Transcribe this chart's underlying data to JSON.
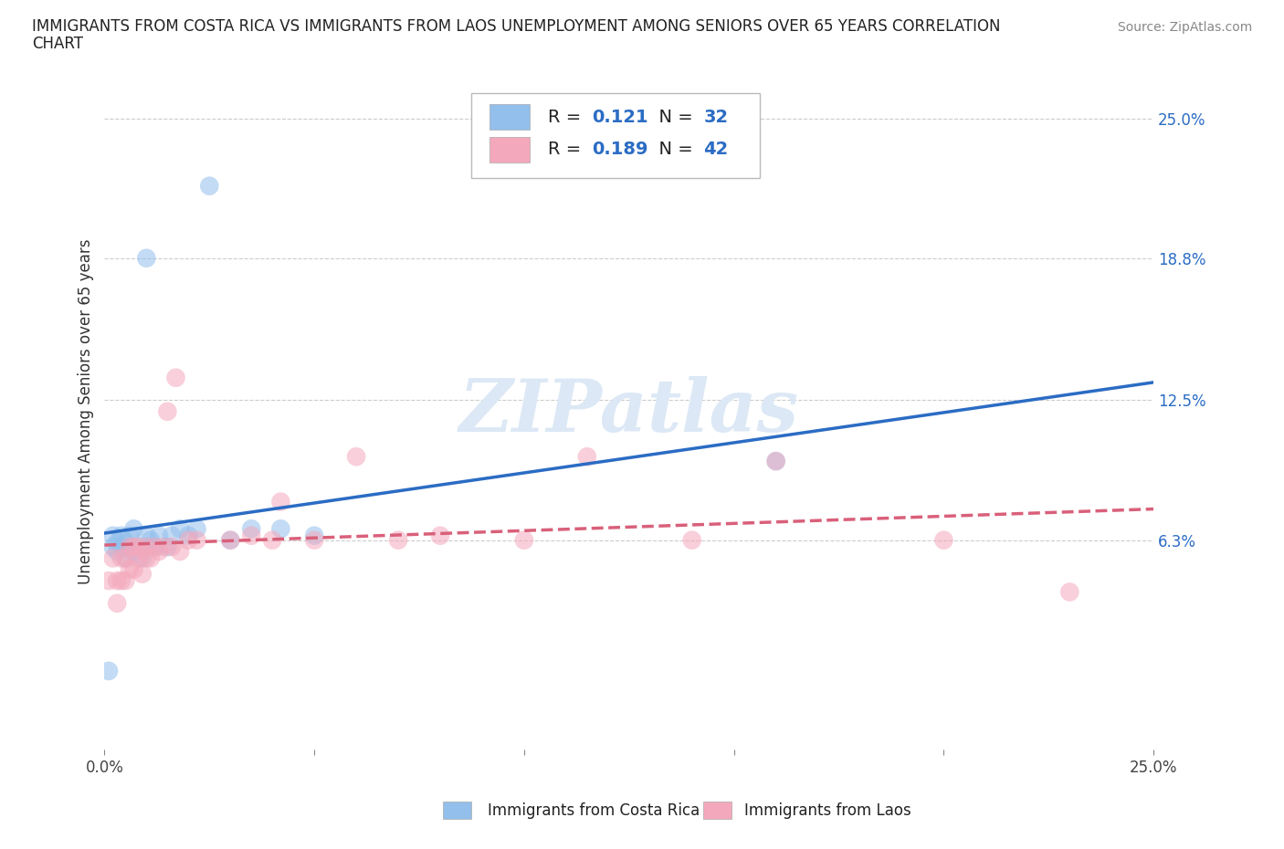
{
  "title_line1": "IMMIGRANTS FROM COSTA RICA VS IMMIGRANTS FROM LAOS UNEMPLOYMENT AMONG SENIORS OVER 65 YEARS CORRELATION",
  "title_line2": "CHART",
  "source": "Source: ZipAtlas.com",
  "ylabel": "Unemployment Among Seniors over 65 years",
  "xlim": [
    0.0,
    0.25
  ],
  "ylim": [
    -0.03,
    0.27
  ],
  "ytick_values": [
    0.063,
    0.125,
    0.188,
    0.25
  ],
  "ytick_labels": [
    "6.3%",
    "12.5%",
    "18.8%",
    "25.0%"
  ],
  "costa_rica_R": 0.121,
  "costa_rica_N": 32,
  "laos_R": 0.189,
  "laos_N": 42,
  "costa_rica_color": "#92bfec",
  "laos_color": "#f4a8bc",
  "costa_rica_line_color": "#2b6cc4",
  "laos_line_color": "#d9607a",
  "watermark_color": "#dce8f5",
  "background_color": "#ffffff",
  "grid_color": "#cccccc",
  "legend_label1": "Immigrants from Costa Rica",
  "legend_label2": "Immigrants from Laos",
  "costa_rica_x": [
    0.001,
    0.002,
    0.002,
    0.003,
    0.003,
    0.004,
    0.004,
    0.005,
    0.005,
    0.006,
    0.006,
    0.007,
    0.007,
    0.008,
    0.009,
    0.01,
    0.01,
    0.011,
    0.012,
    0.013,
    0.015,
    0.016,
    0.018,
    0.02,
    0.022,
    0.03,
    0.035,
    0.042,
    0.05,
    0.16,
    0.01,
    0.025
  ],
  "costa_rica_y": [
    0.005,
    0.06,
    0.065,
    0.058,
    0.062,
    0.06,
    0.065,
    0.055,
    0.062,
    0.06,
    0.065,
    0.058,
    0.068,
    0.06,
    0.055,
    0.06,
    0.065,
    0.063,
    0.06,
    0.065,
    0.06,
    0.065,
    0.068,
    0.065,
    0.068,
    0.063,
    0.068,
    0.068,
    0.065,
    0.098,
    0.188,
    0.22
  ],
  "laos_x": [
    0.001,
    0.002,
    0.003,
    0.003,
    0.004,
    0.004,
    0.005,
    0.005,
    0.006,
    0.006,
    0.007,
    0.007,
    0.008,
    0.008,
    0.009,
    0.009,
    0.01,
    0.01,
    0.011,
    0.012,
    0.013,
    0.014,
    0.015,
    0.016,
    0.017,
    0.018,
    0.02,
    0.022,
    0.03,
    0.035,
    0.04,
    0.042,
    0.05,
    0.06,
    0.07,
    0.08,
    0.1,
    0.115,
    0.14,
    0.16,
    0.2,
    0.23
  ],
  "laos_y": [
    0.045,
    0.055,
    0.035,
    0.045,
    0.045,
    0.055,
    0.045,
    0.055,
    0.05,
    0.06,
    0.05,
    0.06,
    0.055,
    0.06,
    0.048,
    0.058,
    0.055,
    0.06,
    0.055,
    0.06,
    0.058,
    0.06,
    0.12,
    0.06,
    0.135,
    0.058,
    0.063,
    0.063,
    0.063,
    0.065,
    0.063,
    0.08,
    0.063,
    0.1,
    0.063,
    0.065,
    0.063,
    0.1,
    0.063,
    0.098,
    0.063,
    0.04
  ]
}
